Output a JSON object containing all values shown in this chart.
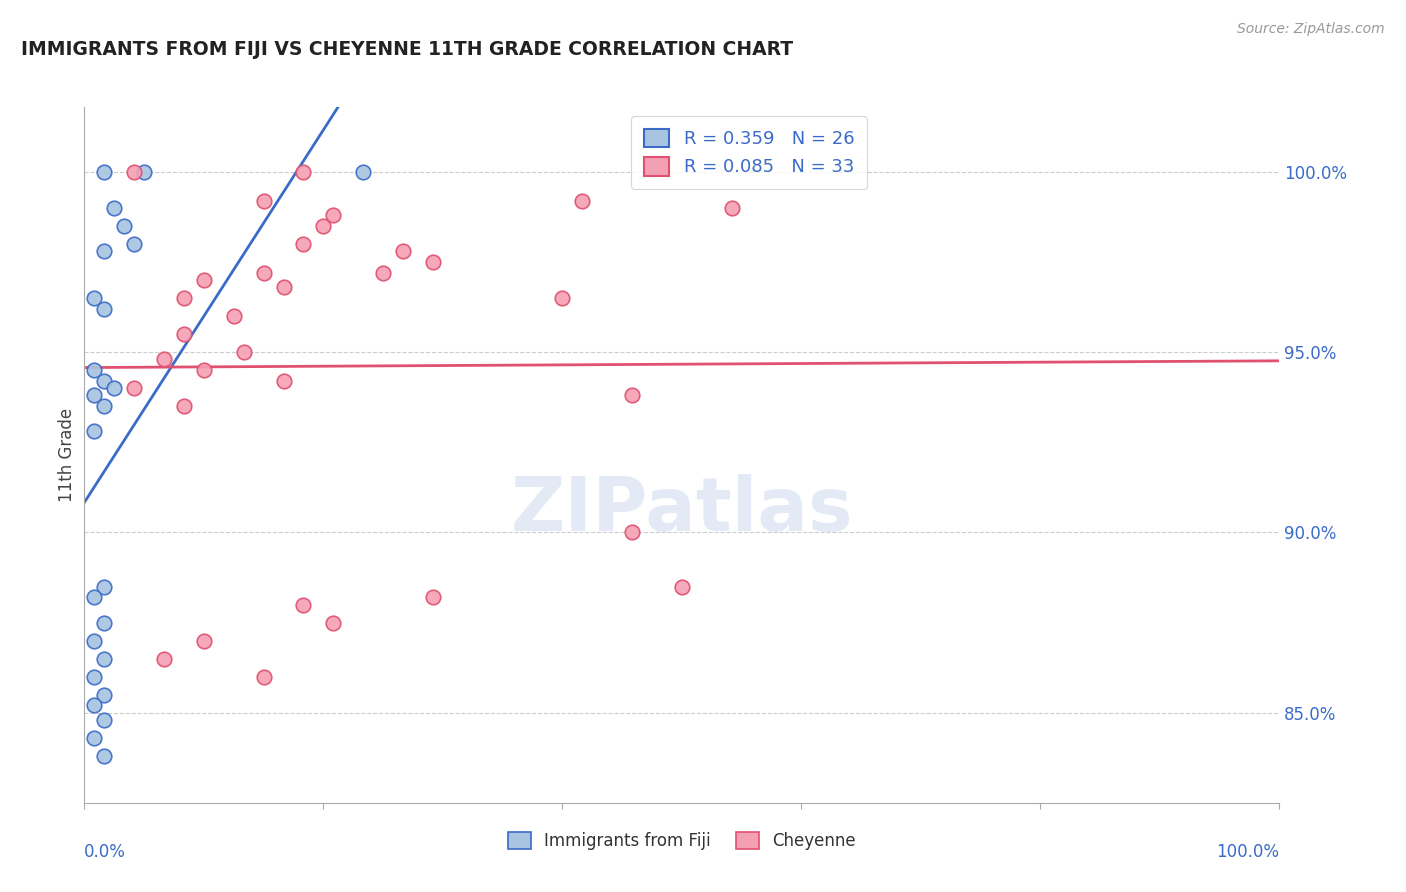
{
  "title": "IMMIGRANTS FROM FIJI VS CHEYENNE 11TH GRADE CORRELATION CHART",
  "source": "Source: ZipAtlas.com",
  "ylabel": "11th Grade",
  "watermark": "ZIPatlas",
  "legend_r1": "R = 0.359",
  "legend_n1": "N = 26",
  "legend_r2": "R = 0.085",
  "legend_n2": "N = 33",
  "fiji_color": "#a8c4e0",
  "cheyenne_color": "#f4a0b4",
  "fiji_line_color": "#3a6bc8",
  "cheyenne_line_color": "#e05070",
  "fiji_points": [
    [
      0.002,
      100.0
    ],
    [
      0.006,
      100.0
    ],
    [
      0.028,
      100.0
    ],
    [
      0.003,
      99.0
    ],
    [
      0.004,
      98.5
    ],
    [
      0.005,
      98.0
    ],
    [
      0.002,
      97.8
    ],
    [
      0.001,
      96.5
    ],
    [
      0.002,
      96.2
    ],
    [
      0.001,
      94.5
    ],
    [
      0.002,
      94.2
    ],
    [
      0.003,
      94.0
    ],
    [
      0.001,
      93.8
    ],
    [
      0.002,
      93.5
    ],
    [
      0.001,
      92.8
    ],
    [
      0.002,
      88.5
    ],
    [
      0.001,
      88.2
    ],
    [
      0.002,
      87.5
    ],
    [
      0.001,
      87.0
    ],
    [
      0.002,
      86.5
    ],
    [
      0.001,
      86.0
    ],
    [
      0.002,
      85.5
    ],
    [
      0.001,
      85.2
    ],
    [
      0.002,
      84.8
    ],
    [
      0.001,
      84.3
    ],
    [
      0.002,
      83.8
    ]
  ],
  "cheyenne_points": [
    [
      0.005,
      100.0
    ],
    [
      0.022,
      100.0
    ],
    [
      0.018,
      99.2
    ],
    [
      0.025,
      98.8
    ],
    [
      0.024,
      98.5
    ],
    [
      0.022,
      98.0
    ],
    [
      0.032,
      97.8
    ],
    [
      0.035,
      97.5
    ],
    [
      0.012,
      97.0
    ],
    [
      0.018,
      97.2
    ],
    [
      0.02,
      96.8
    ],
    [
      0.01,
      96.5
    ],
    [
      0.015,
      96.0
    ],
    [
      0.01,
      95.5
    ],
    [
      0.016,
      95.0
    ],
    [
      0.008,
      94.8
    ],
    [
      0.012,
      94.5
    ],
    [
      0.02,
      94.2
    ],
    [
      0.048,
      96.5
    ],
    [
      0.05,
      99.2
    ],
    [
      0.065,
      99.0
    ],
    [
      0.03,
      97.2
    ],
    [
      0.055,
      93.8
    ],
    [
      0.055,
      90.0
    ],
    [
      0.06,
      88.5
    ],
    [
      0.022,
      88.0
    ],
    [
      0.025,
      87.5
    ],
    [
      0.01,
      93.5
    ],
    [
      0.012,
      87.0
    ],
    [
      0.008,
      86.5
    ],
    [
      0.018,
      86.0
    ],
    [
      0.005,
      94.0
    ],
    [
      0.035,
      88.2
    ]
  ],
  "xlim": [
    0.0,
    0.12
  ],
  "ylim": [
    82.5,
    101.8
  ],
  "grid_color": "#cccccc",
  "y_tick_vals": [
    85.0,
    90.0,
    95.0,
    100.0
  ],
  "y_tick_labels": [
    "85.0%",
    "90.0%",
    "95.0%",
    "100.0%"
  ]
}
